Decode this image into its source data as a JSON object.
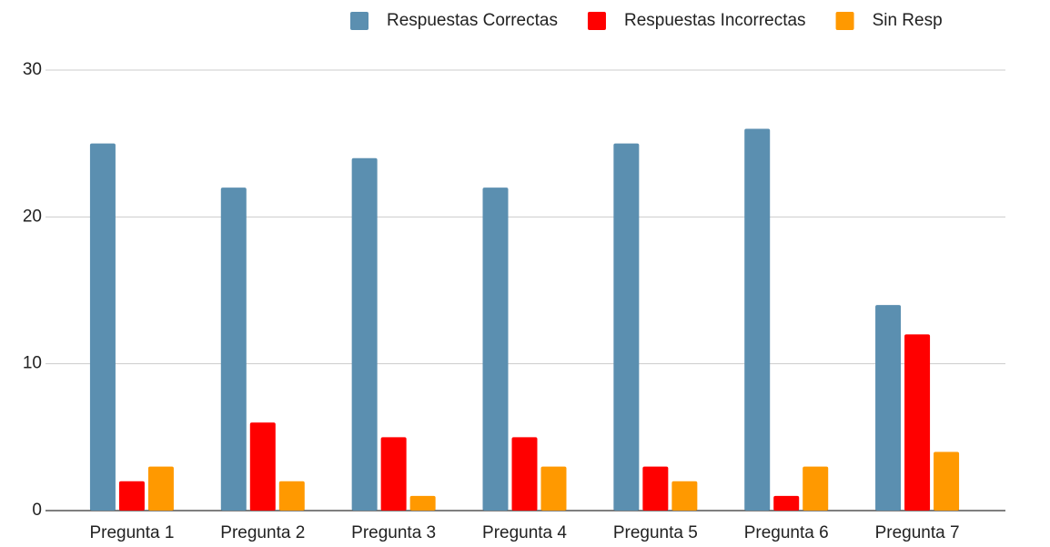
{
  "chart_data": {
    "type": "bar",
    "categories": [
      "Pregunta 1",
      "Pregunta 2",
      "Pregunta 3",
      "Pregunta 4",
      "Pregunta 5",
      "Pregunta 6",
      "Pregunta 7"
    ],
    "series": [
      {
        "name": "Respuestas Correctas",
        "color": "#5b8fb0",
        "values": [
          25,
          22,
          24,
          22,
          25,
          26,
          14
        ]
      },
      {
        "name": "Respuestas Incorrectas",
        "color": "#ff0000",
        "values": [
          2,
          6,
          5,
          5,
          3,
          1,
          12
        ]
      },
      {
        "name": "Sin Resp",
        "color": "#ff9900",
        "values": [
          3,
          2,
          1,
          3,
          2,
          3,
          4
        ]
      }
    ],
    "ylim": [
      0,
      30
    ],
    "yticks": [
      0,
      10,
      20,
      30
    ],
    "grid": true,
    "legend": "top"
  }
}
